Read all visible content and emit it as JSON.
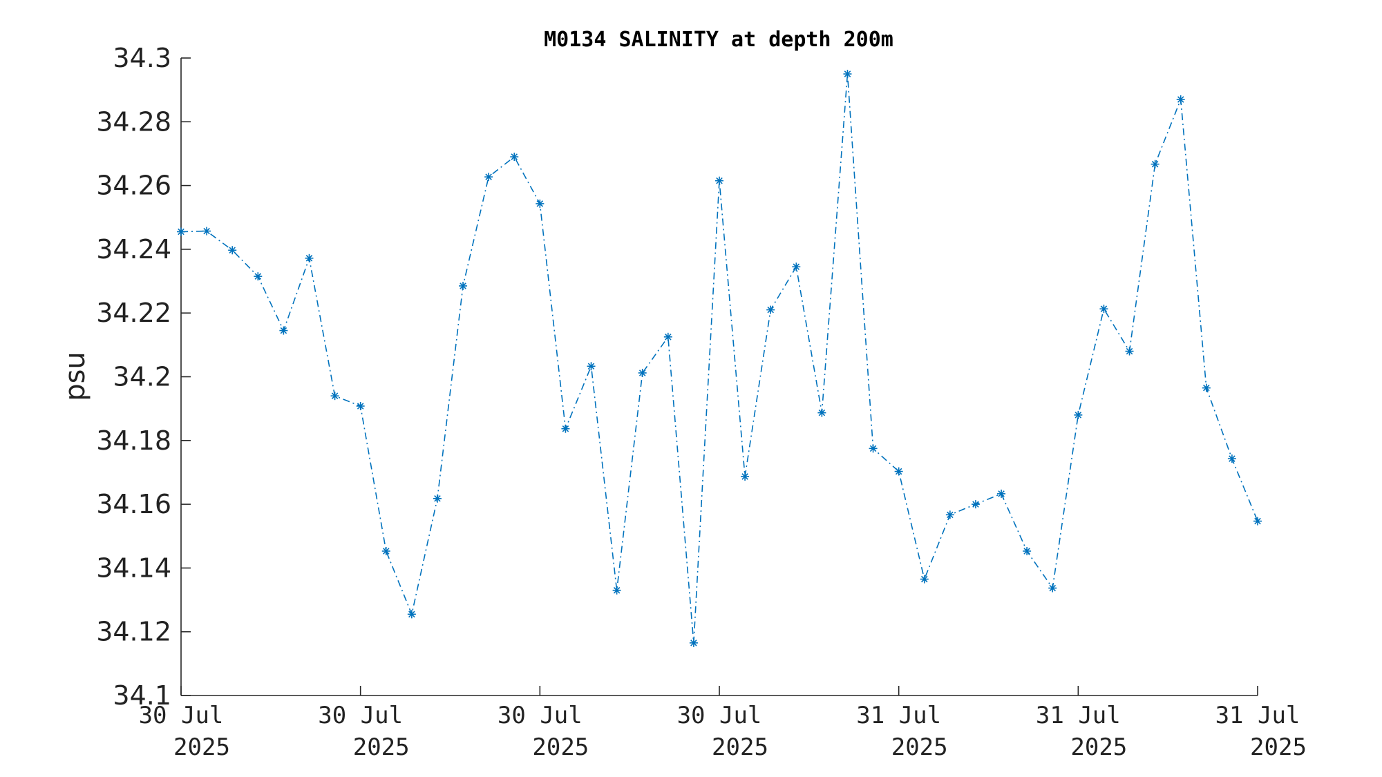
{
  "chart_data": {
    "type": "line",
    "title": "M0134 SALINITY at depth 200m",
    "xlabel": "",
    "ylabel": "psu",
    "ylim": [
      34.1,
      34.3
    ],
    "yticks": [
      34.1,
      34.12,
      34.14,
      34.16,
      34.18,
      34.2,
      34.22,
      34.24,
      34.26,
      34.28,
      34.3
    ],
    "ytick_labels": [
      "34.1",
      "34.12",
      "34.14",
      "34.16",
      "34.18",
      "34.2",
      "34.22",
      "34.24",
      "34.26",
      "34.28",
      "34.3"
    ],
    "xtick_labels": [
      {
        "line1": "30 Jul",
        "line2": "2025"
      },
      {
        "line1": "30 Jul",
        "line2": "2025"
      },
      {
        "line1": "30 Jul",
        "line2": "2025"
      },
      {
        "line1": "30 Jul",
        "line2": "2025"
      },
      {
        "line1": "31 Jul",
        "line2": "2025"
      },
      {
        "line1": "31 Jul",
        "line2": "2025"
      },
      {
        "line1": "31 Jul",
        "line2": "2025"
      }
    ],
    "grid": false,
    "line_style": "dash-dot",
    "marker": "asterisk",
    "color": "#0072BD",
    "series": [
      {
        "values": [
          34.2455,
          34.2457,
          34.2397,
          34.2315,
          34.2145,
          34.2372,
          34.194,
          34.1908,
          34.1453,
          34.1255,
          34.1618,
          34.2285,
          34.2627,
          34.269,
          34.2543,
          34.1837,
          34.2033,
          34.133,
          34.2012,
          34.2125,
          34.1165,
          34.2615,
          34.1687,
          34.221,
          34.2345,
          34.1887,
          34.295,
          34.1775,
          34.1703,
          34.1365,
          34.1567,
          34.16,
          34.1633,
          34.1453,
          34.1337,
          34.188,
          34.2213,
          34.208,
          34.2667,
          34.287,
          34.1965,
          34.1743,
          34.1547
        ]
      }
    ]
  }
}
